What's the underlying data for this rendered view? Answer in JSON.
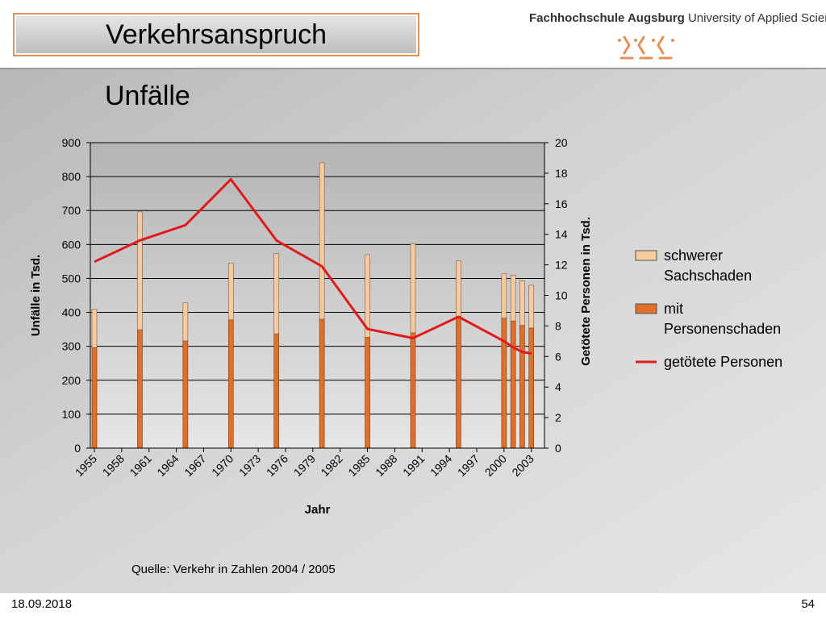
{
  "slide": {
    "title": "Verkehrsanspruch",
    "org_bold": "Fachhochschule Augsburg",
    "org_rest": " University of Applied Sciences",
    "subtitle": "Unfälle",
    "source": "Quelle: Verkehr in Zahlen 2004 / 2005",
    "date": "18.09.2018",
    "page": "54"
  },
  "colors": {
    "accent": "#e0925a",
    "bar_sach": "#f7caa0",
    "bar_pers": "#e06f2a",
    "line": "#e01a1a"
  },
  "chart_data": {
    "type": "bar",
    "title": "",
    "xlabel": "Jahr",
    "ylabel": "Unfälle in Tsd.",
    "y2label": "Getötete Personen in Tsd.",
    "ylim": [
      0,
      900
    ],
    "y2lim": [
      0,
      20
    ],
    "yticks": [
      0,
      100,
      200,
      300,
      400,
      500,
      600,
      700,
      800,
      900
    ],
    "y2ticks": [
      0,
      2,
      4,
      6,
      8,
      10,
      12,
      14,
      16,
      18,
      20
    ],
    "xlim": [
      1955,
      2004
    ],
    "xtick_labels": [
      "1955",
      "1958",
      "1961",
      "1964",
      "1967",
      "1970",
      "1973",
      "1976",
      "1979",
      "1982",
      "1985",
      "1988",
      "1991",
      "1994",
      "1997",
      "2000",
      "2003"
    ],
    "legend_position": "right",
    "series": [
      {
        "name": "schwerer Sachschaden",
        "kind": "stacked-bar-top",
        "x": [
          1955,
          1960,
          1965,
          1970,
          1975,
          1980,
          1985,
          1990,
          1995,
          2000,
          2001,
          2002,
          2003
        ],
        "values": [
          114,
          347,
          112,
          167,
          236,
          461,
          243,
          262,
          164,
          131,
          135,
          131,
          126
        ]
      },
      {
        "name": "mit Personenschaden",
        "kind": "stacked-bar-bottom",
        "x": [
          1955,
          1960,
          1965,
          1970,
          1975,
          1980,
          1985,
          1990,
          1995,
          2000,
          2001,
          2002,
          2003
        ],
        "values": [
          296,
          349,
          316,
          378,
          337,
          380,
          327,
          340,
          388,
          383,
          375,
          362,
          354
        ]
      },
      {
        "name": "getötete Personen",
        "kind": "line",
        "axis": "secondary",
        "x": [
          1955,
          1960,
          1965,
          1970,
          1975,
          1980,
          1985,
          1990,
          1995,
          2000,
          2001,
          2002,
          2003
        ],
        "values": [
          12.2,
          13.6,
          14.6,
          17.6,
          13.6,
          11.9,
          7.8,
          7.2,
          8.6,
          7.0,
          6.6,
          6.3,
          6.2
        ]
      }
    ]
  }
}
